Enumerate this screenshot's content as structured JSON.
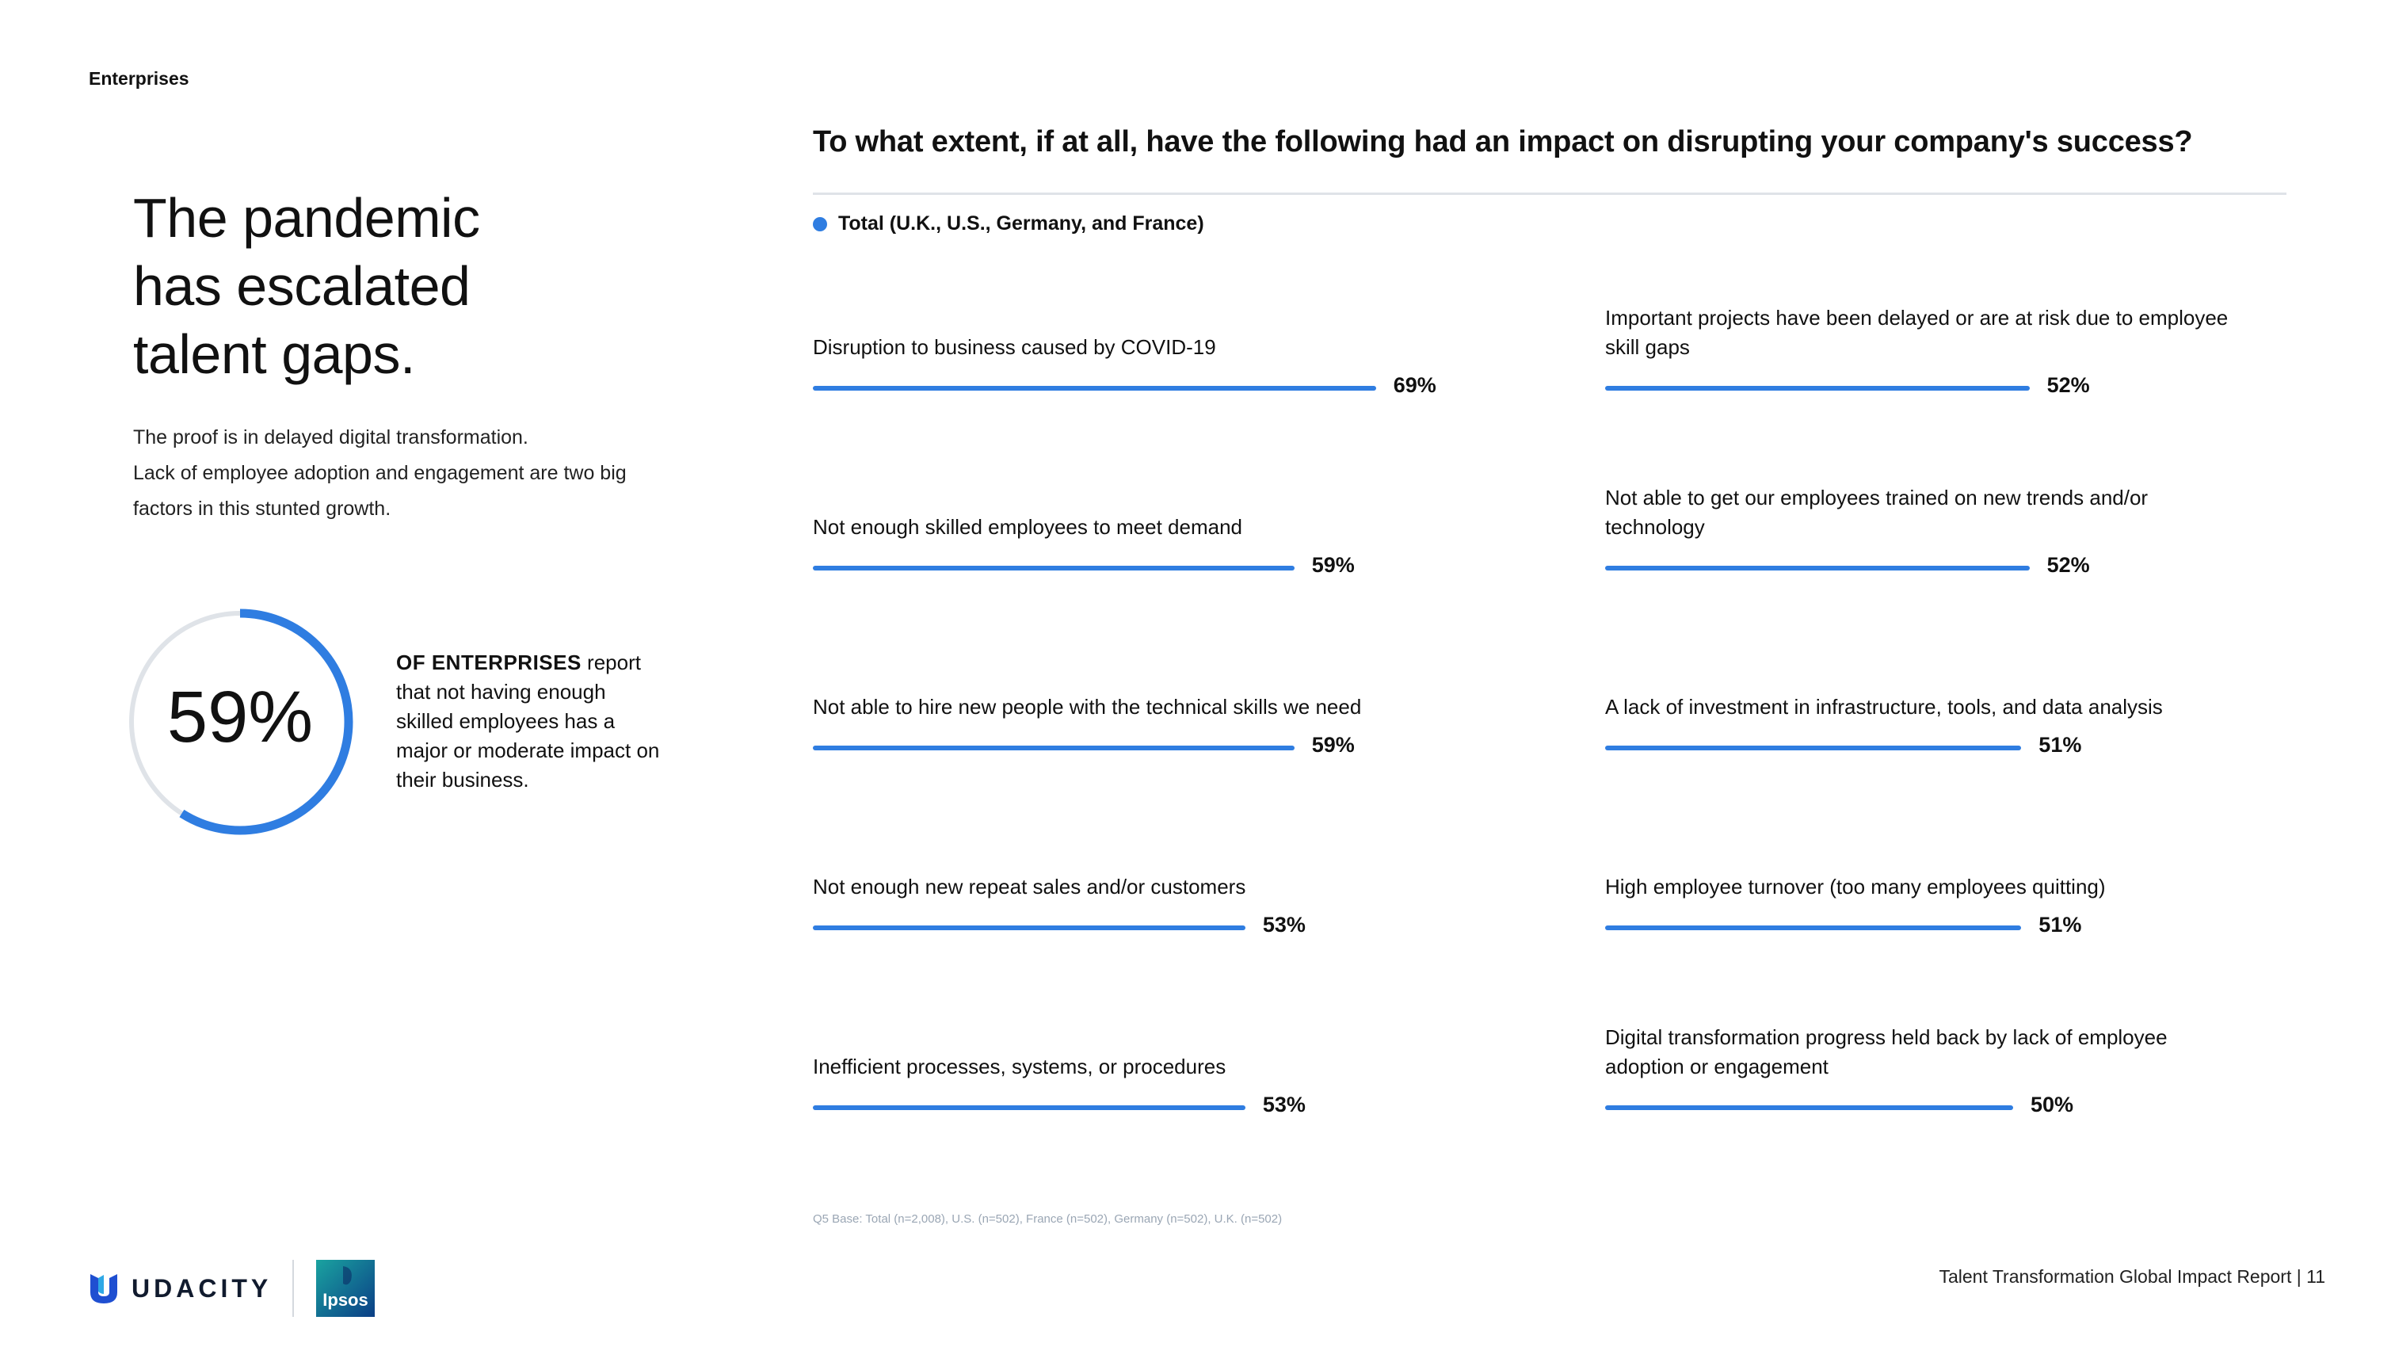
{
  "section_tag": "Enterprises",
  "headline": [
    "The pandemic",
    "has escalated",
    "talent gaps."
  ],
  "intro": [
    "The proof is in delayed digital transformation.",
    "Lack of employee adoption and engagement are two big",
    "factors in this stunted growth."
  ],
  "stat": {
    "value_label": "59%",
    "fraction": 0.59,
    "lead": "OF ENTERPRISES",
    "text": " report that not having enough skilled employees has a major or moderate impact on their business."
  },
  "colors": {
    "accent": "#2f7de1",
    "track": "#dfe3e8"
  },
  "chart_data": {
    "type": "bar",
    "title": "To what extent, if at all, have the following had an impact on disrupting your company's success?",
    "legend": {
      "series": "Total (U.K., U.S., Germany, and France)",
      "placement": "top-left"
    },
    "unit": "%",
    "xlim": [
      0,
      100
    ],
    "grid": false,
    "categories": [
      "Disruption to business caused by COVID-19",
      "Not enough skilled employees to meet demand",
      "Not able to hire new people with the technical skills we need",
      "Not enough new repeat sales and/or customers",
      "Inefficient processes, systems, or procedures",
      "Important projects have been delayed or are at risk due to employee skill gaps",
      "Not able to get our employees trained on new trends and/or technology",
      "A lack of investment in infrastructure, tools, and data analysis",
      "High employee turnover (too many employees quitting)",
      "Digital transformation progress held back by lack of employee adoption or engagement"
    ],
    "label_lines": [
      [
        "Disruption to business caused by COVID-19"
      ],
      [
        "Not enough skilled employees to meet demand"
      ],
      [
        "Not able to hire new people with the technical skills we need"
      ],
      [
        "Not enough new repeat sales and/or customers"
      ],
      [
        "Inefficient processes, systems, or procedures"
      ],
      [
        "Important projects have been delayed or are at risk due to employee",
        "skill gaps"
      ],
      [
        "Not able to get our employees trained on new trends and/or",
        "technology"
      ],
      [
        "A lack of investment in infrastructure, tools, and data analysis"
      ],
      [
        "High employee turnover (too many employees quitting)"
      ],
      [
        "Digital transformation progress held back by lack of employee",
        "adoption or engagement"
      ]
    ],
    "values": [
      69,
      59,
      59,
      53,
      53,
      52,
      52,
      51,
      51,
      50
    ],
    "value_labels": [
      "69%",
      "59%",
      "59%",
      "53%",
      "53%",
      "52%",
      "52%",
      "51%",
      "51%",
      "50%"
    ]
  },
  "footnote": "Q5 Base: Total (n=2,008), U.S. (n=502), France (n=502), Germany (n=502), U.K. (n=502)",
  "brand": {
    "udacity": "UDACITY",
    "ipsos": "Ipsos"
  },
  "page_footer": "Talent Transformation Global Impact Report | 11"
}
